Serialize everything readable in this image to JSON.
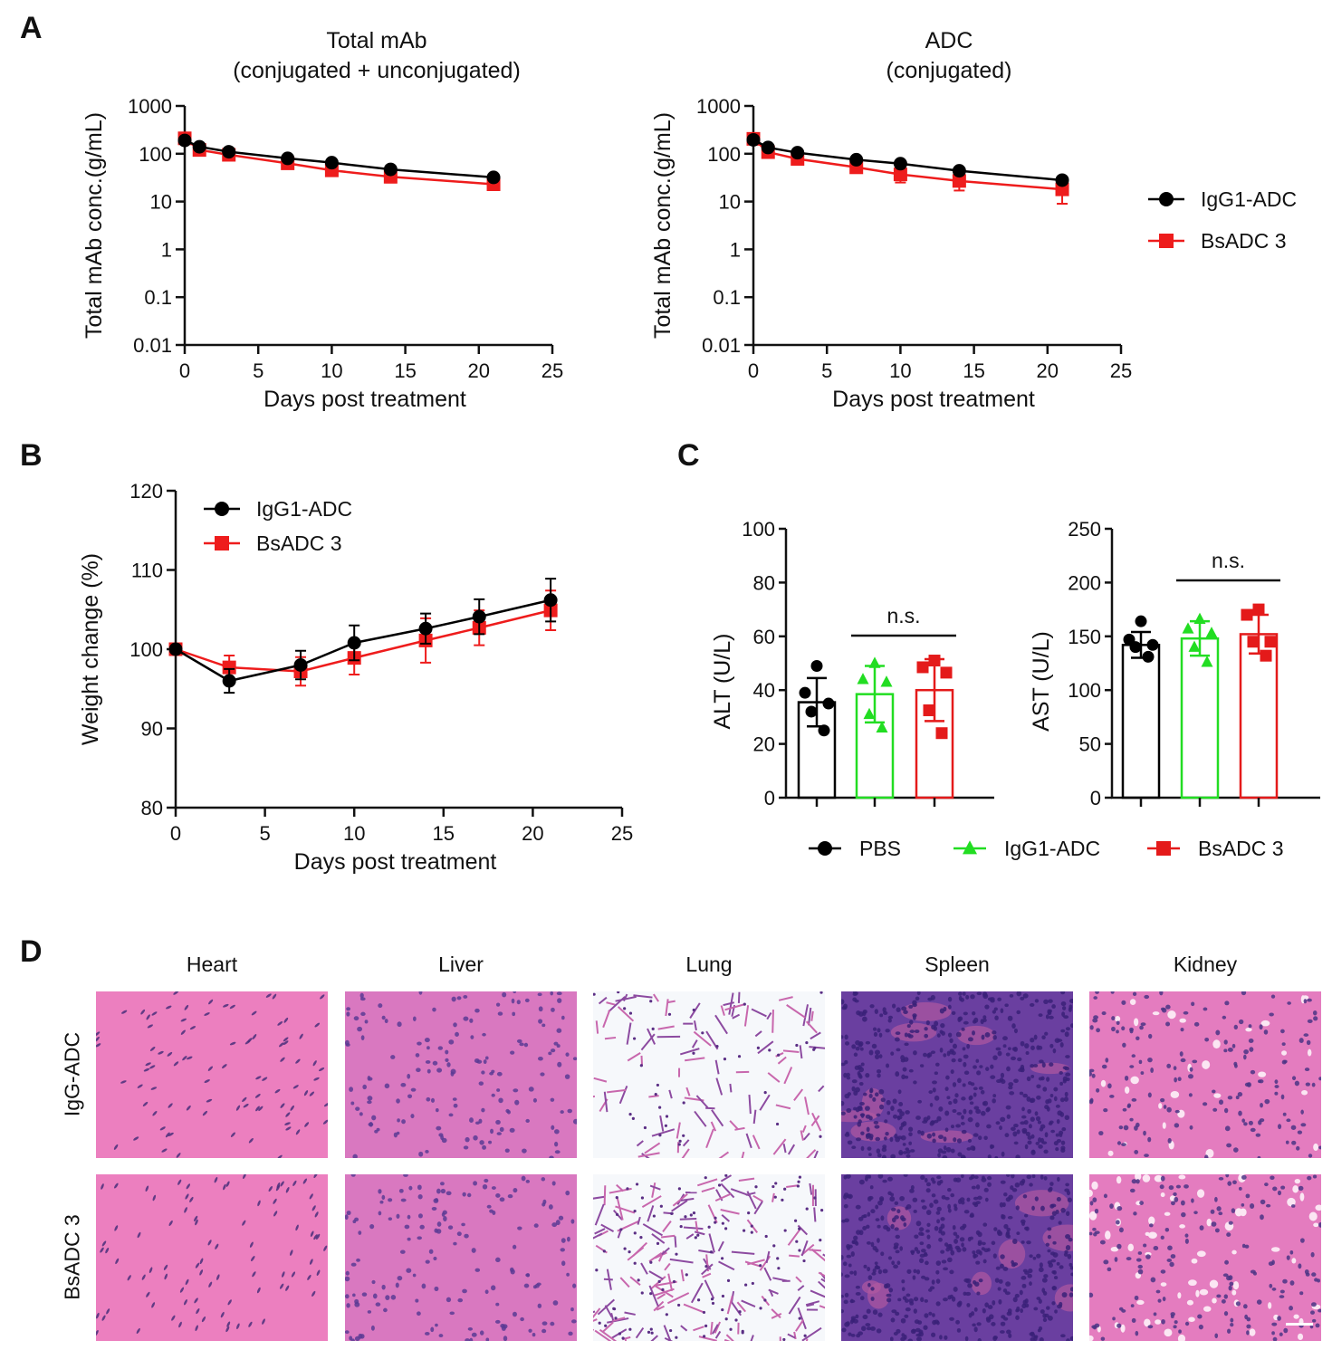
{
  "panel_letters": {
    "a": "A",
    "b": "B",
    "c": "C",
    "d": "D"
  },
  "colors": {
    "igg1": "#000000",
    "bsadc": "#ee1c1c",
    "pbs": "#000000",
    "igg1_bar": "#22dd22",
    "bsadc_bar": "#e41a1a",
    "he_pink": "#e87ab8",
    "he_purple": "#5a3a9a"
  },
  "chart_data": [
    {
      "id": "A-total",
      "type": "line",
      "title": "Total mAb",
      "subtitle": "(conjugated + unconjugated)",
      "xlabel": "Days post treatment",
      "ylabel": "Total mAb conc.(g/mL)",
      "yscale": "log",
      "xlim": [
        0,
        25
      ],
      "ylim": [
        0.01,
        1000
      ],
      "xticks": [
        "0",
        "5",
        "10",
        "15",
        "20",
        "25"
      ],
      "yticks": [
        "0.01",
        "0.1",
        "1",
        "10",
        "100",
        "1000"
      ],
      "x": [
        0,
        1,
        3,
        7,
        10,
        14,
        21
      ],
      "series": [
        {
          "name": "IgG1-ADC",
          "marker": "circle",
          "values": [
            190,
            140,
            110,
            80,
            65,
            47,
            32
          ],
          "err": [
            15,
            10,
            8,
            6,
            5,
            4,
            3
          ]
        },
        {
          "name": "BsADC 3",
          "marker": "square",
          "values": [
            210,
            120,
            95,
            63,
            45,
            33,
            23
          ],
          "err": [
            20,
            10,
            9,
            7,
            6,
            8,
            5
          ]
        }
      ]
    },
    {
      "id": "A-adc",
      "type": "line",
      "title": "ADC",
      "subtitle": "(conjugated)",
      "xlabel": "Days post treatment",
      "ylabel": "Total mAb conc.(g/mL)",
      "yscale": "log",
      "xlim": [
        0,
        25
      ],
      "ylim": [
        0.01,
        1000
      ],
      "xticks": [
        "0",
        "5",
        "10",
        "15",
        "20",
        "25"
      ],
      "yticks": [
        "0.01",
        "0.1",
        "1",
        "10",
        "100",
        "1000"
      ],
      "x": [
        0,
        1,
        3,
        7,
        10,
        14,
        21
      ],
      "legend": {
        "position": "right",
        "entries": [
          "IgG1-ADC",
          "BsADC 3"
        ]
      },
      "series": [
        {
          "name": "IgG1-ADC",
          "marker": "circle",
          "values": [
            195,
            135,
            105,
            75,
            62,
            44,
            28
          ],
          "err": [
            15,
            10,
            8,
            6,
            5,
            4,
            3
          ]
        },
        {
          "name": "BsADC 3",
          "marker": "square",
          "values": [
            205,
            108,
            78,
            52,
            37,
            27,
            18
          ],
          "err": [
            20,
            10,
            9,
            8,
            12,
            10,
            9
          ]
        }
      ]
    },
    {
      "id": "B-weight",
      "type": "line",
      "title": "",
      "xlabel": "Days post treatment",
      "ylabel": "Weight change (%)",
      "xlim": [
        0,
        25
      ],
      "ylim": [
        80,
        120
      ],
      "xticks": [
        "0",
        "5",
        "10",
        "15",
        "20",
        "25"
      ],
      "yticks": [
        "80",
        "90",
        "100",
        "110",
        "120"
      ],
      "x": [
        0,
        3,
        7,
        10,
        14,
        17,
        21
      ],
      "legend": {
        "position": "top-left",
        "entries": [
          "IgG1-ADC",
          "BsADC 3"
        ]
      },
      "series": [
        {
          "name": "IgG1-ADC",
          "marker": "circle",
          "values": [
            100,
            96.0,
            98.0,
            100.8,
            102.6,
            104.1,
            106.2
          ],
          "err": [
            0,
            1.5,
            1.8,
            2.2,
            1.9,
            2.2,
            2.7
          ]
        },
        {
          "name": "BsADC 3",
          "marker": "square",
          "values": [
            100,
            97.7,
            97.2,
            98.9,
            101.1,
            102.7,
            104.9
          ],
          "err": [
            0,
            1.5,
            1.8,
            2.1,
            2.8,
            2.2,
            2.5
          ]
        }
      ]
    },
    {
      "id": "C-alt",
      "type": "bar",
      "ylabel": "ALT (U/L)",
      "ylim": [
        0,
        100
      ],
      "yticks": [
        "0",
        "20",
        "40",
        "60",
        "80",
        "100"
      ],
      "categories": [
        "PBS",
        "IgG1-ADC",
        "BsADC 3"
      ],
      "values": [
        35.5,
        38.5,
        40.0
      ],
      "sd": [
        9,
        10.5,
        11.5
      ],
      "points": [
        [
          49,
          39,
          35,
          32,
          25
        ],
        [
          50,
          44,
          43,
          31,
          26
        ],
        [
          51,
          48.5,
          46.5,
          32.5,
          24
        ]
      ],
      "annotation": {
        "text": "n.s.",
        "spans": [
          "IgG1-ADC",
          "BsADC 3"
        ]
      }
    },
    {
      "id": "C-ast",
      "type": "bar",
      "ylabel": "AST (U/L)",
      "ylim": [
        0,
        250
      ],
      "yticks": [
        "0",
        "50",
        "100",
        "150",
        "200",
        "250"
      ],
      "categories": [
        "PBS",
        "IgG1-ADC",
        "BsADC 3"
      ],
      "values": [
        142,
        148,
        152
      ],
      "sd": [
        12,
        16,
        18
      ],
      "points": [
        [
          164,
          147,
          142,
          140,
          131
        ],
        [
          166,
          157,
          153,
          140,
          126
        ],
        [
          175,
          170,
          145,
          145,
          132
        ]
      ],
      "annotation": {
        "text": "n.s.",
        "spans": [
          "IgG1-ADC",
          "BsADC 3"
        ]
      },
      "legend": {
        "position": "bottom",
        "entries": [
          "PBS",
          "IgG1-ADC",
          "BsADC 3"
        ]
      }
    }
  ],
  "legend_c": [
    {
      "label": "PBS",
      "marker": "circle"
    },
    {
      "label": "IgG1-ADC",
      "marker": "triangle"
    },
    {
      "label": "BsADC 3",
      "marker": "square"
    }
  ],
  "histology": {
    "columns": [
      "Heart",
      "Liver",
      "Lung",
      "Spleen",
      "Kidney"
    ],
    "rows": [
      "IgG-ADC",
      "BsADC 3"
    ]
  }
}
